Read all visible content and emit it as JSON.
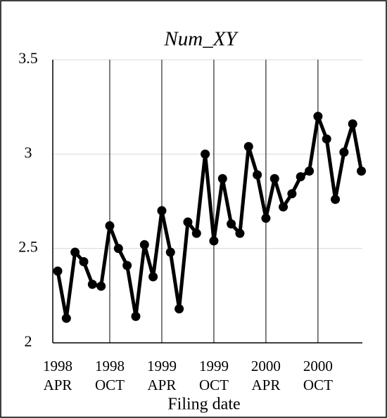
{
  "chart_data": {
    "type": "line",
    "title": "Num_XY",
    "x_label": "Filing date",
    "categories": [
      "1998 APR",
      null,
      null,
      null,
      null,
      null,
      "1998 OCT",
      null,
      null,
      null,
      null,
      null,
      "1999 APR",
      null,
      null,
      null,
      null,
      null,
      "1999 OCT",
      null,
      null,
      null,
      null,
      null,
      "2000 APR",
      null,
      null,
      null,
      null,
      null,
      "2000 OCT",
      null,
      null,
      null,
      null,
      null
    ],
    "series": [
      {
        "name": "Num_XY",
        "color": "#000000",
        "values": [
          2.38,
          2.13,
          2.48,
          2.43,
          2.31,
          2.3,
          2.62,
          2.5,
          2.41,
          2.14,
          2.52,
          2.35,
          2.7,
          2.48,
          2.18,
          2.64,
          2.58,
          3.0,
          2.54,
          2.87,
          2.63,
          2.58,
          3.04,
          2.89,
          2.66,
          2.87,
          2.72,
          2.79,
          2.88,
          2.91,
          3.2,
          3.08,
          2.76,
          3.01,
          3.16,
          2.91
        ]
      }
    ],
    "ylim": [
      2,
      3.5
    ],
    "yticks": [
      2,
      2.5,
      3,
      3.5
    ],
    "grid": true
  }
}
